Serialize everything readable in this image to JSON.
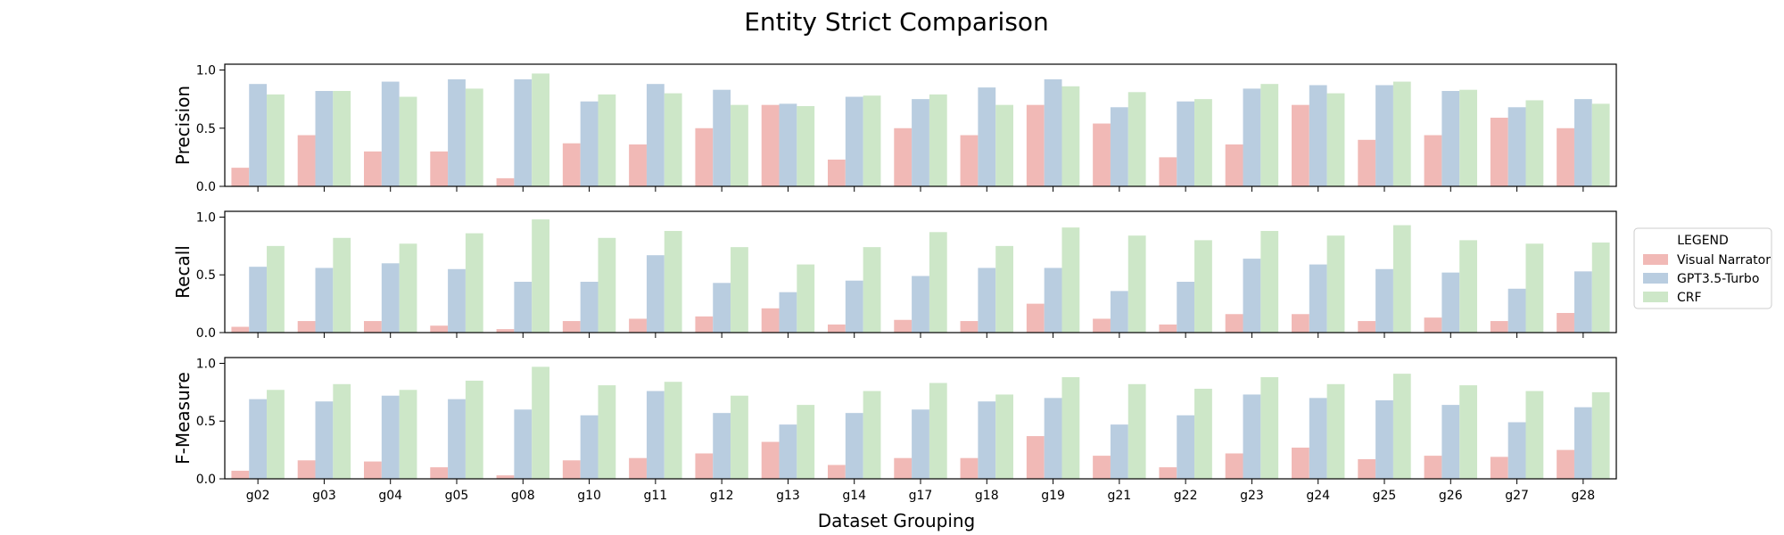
{
  "chart_data": {
    "type": "bar",
    "title": "Entity Strict Comparison",
    "xlabel": "Dataset Grouping",
    "categories": [
      "g02",
      "g03",
      "g04",
      "g05",
      "g08",
      "g10",
      "g11",
      "g12",
      "g13",
      "g14",
      "g17",
      "g18",
      "g19",
      "g21",
      "g22",
      "g23",
      "g24",
      "g25",
      "g26",
      "g27",
      "g28"
    ],
    "legend": {
      "title": "LEGEND",
      "placement": "right-center",
      "entries": [
        "Visual Narrator",
        "GPT3.5-Turbo",
        "CRF"
      ]
    },
    "colors": {
      "Visual Narrator": "#f1b9b6",
      "GPT3.5-Turbo": "#b9cde0",
      "CRF": "#cde7c8"
    },
    "ylim": [
      0,
      1.05
    ],
    "yticks": [
      0.0,
      0.5,
      1.0
    ],
    "yticklabels": [
      "0.0",
      "0.5",
      "1.0"
    ],
    "grid": false,
    "panels": [
      {
        "ylabel": "Precision",
        "series": [
          {
            "name": "Visual Narrator",
            "values": [
              0.16,
              0.44,
              0.3,
              0.3,
              0.07,
              0.37,
              0.36,
              0.5,
              0.7,
              0.23,
              0.5,
              0.44,
              0.7,
              0.54,
              0.25,
              0.36,
              0.7,
              0.4,
              0.44,
              0.59,
              0.5
            ]
          },
          {
            "name": "GPT3.5-Turbo",
            "values": [
              0.88,
              0.82,
              0.9,
              0.92,
              0.92,
              0.73,
              0.88,
              0.83,
              0.71,
              0.77,
              0.75,
              0.85,
              0.92,
              0.68,
              0.73,
              0.84,
              0.87,
              0.87,
              0.82,
              0.68,
              0.75
            ]
          },
          {
            "name": "CRF",
            "values": [
              0.79,
              0.82,
              0.77,
              0.84,
              0.97,
              0.79,
              0.8,
              0.7,
              0.69,
              0.78,
              0.79,
              0.7,
              0.86,
              0.81,
              0.75,
              0.88,
              0.8,
              0.9,
              0.83,
              0.74,
              0.71
            ]
          }
        ]
      },
      {
        "ylabel": "Recall",
        "series": [
          {
            "name": "Visual Narrator",
            "values": [
              0.05,
              0.1,
              0.1,
              0.06,
              0.03,
              0.1,
              0.12,
              0.14,
              0.21,
              0.07,
              0.11,
              0.1,
              0.25,
              0.12,
              0.07,
              0.16,
              0.16,
              0.1,
              0.13,
              0.1,
              0.17
            ]
          },
          {
            "name": "GPT3.5-Turbo",
            "values": [
              0.57,
              0.56,
              0.6,
              0.55,
              0.44,
              0.44,
              0.67,
              0.43,
              0.35,
              0.45,
              0.49,
              0.56,
              0.56,
              0.36,
              0.44,
              0.64,
              0.59,
              0.55,
              0.52,
              0.38,
              0.53
            ]
          },
          {
            "name": "CRF",
            "values": [
              0.75,
              0.82,
              0.77,
              0.86,
              0.98,
              0.82,
              0.88,
              0.74,
              0.59,
              0.74,
              0.87,
              0.75,
              0.91,
              0.84,
              0.8,
              0.88,
              0.84,
              0.93,
              0.8,
              0.77,
              0.78
            ]
          }
        ]
      },
      {
        "ylabel": "F-Measure",
        "series": [
          {
            "name": "Visual Narrator",
            "values": [
              0.07,
              0.16,
              0.15,
              0.1,
              0.03,
              0.16,
              0.18,
              0.22,
              0.32,
              0.12,
              0.18,
              0.18,
              0.37,
              0.2,
              0.1,
              0.22,
              0.27,
              0.17,
              0.2,
              0.19,
              0.25
            ]
          },
          {
            "name": "GPT3.5-Turbo",
            "values": [
              0.69,
              0.67,
              0.72,
              0.69,
              0.6,
              0.55,
              0.76,
              0.57,
              0.47,
              0.57,
              0.6,
              0.67,
              0.7,
              0.47,
              0.55,
              0.73,
              0.7,
              0.68,
              0.64,
              0.49,
              0.62
            ]
          },
          {
            "name": "CRF",
            "values": [
              0.77,
              0.82,
              0.77,
              0.85,
              0.97,
              0.81,
              0.84,
              0.72,
              0.64,
              0.76,
              0.83,
              0.73,
              0.88,
              0.82,
              0.78,
              0.88,
              0.82,
              0.91,
              0.81,
              0.76,
              0.75
            ]
          }
        ]
      }
    ]
  }
}
